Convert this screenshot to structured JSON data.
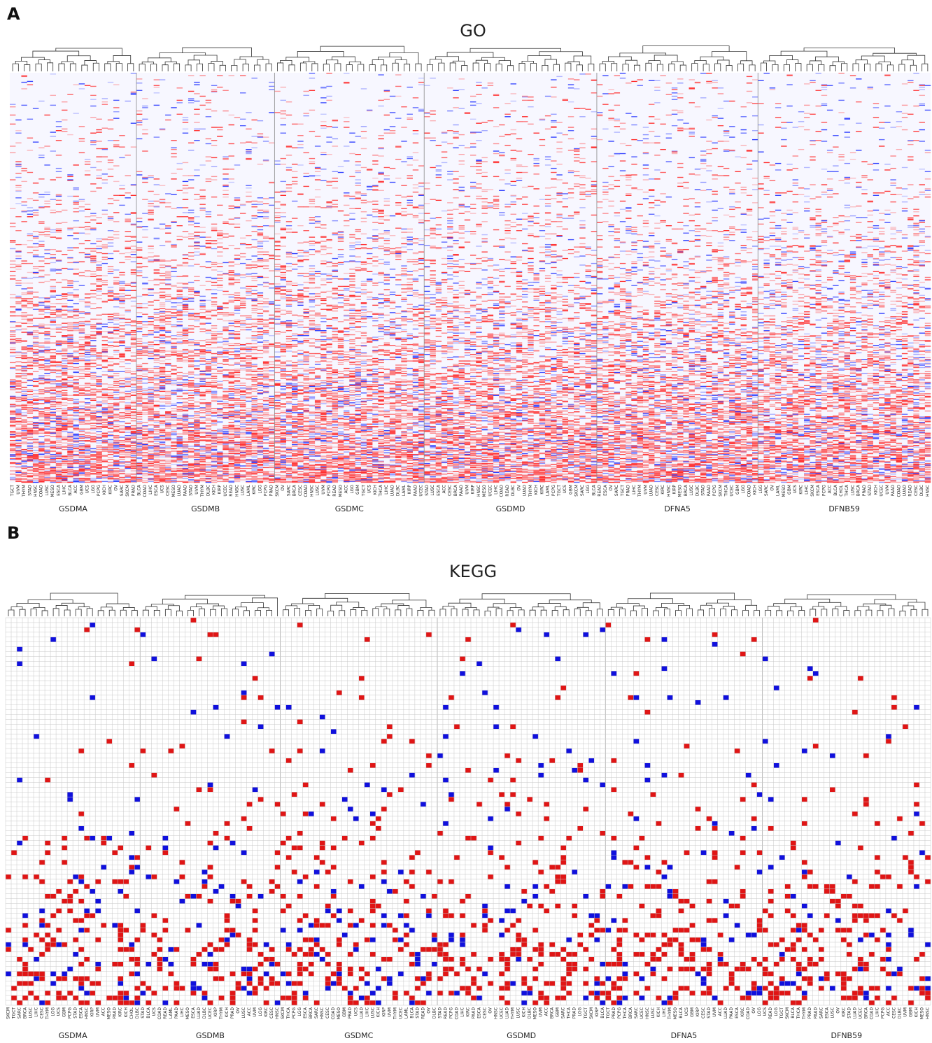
{
  "panels": [
    {
      "letter": "A",
      "title": "GO",
      "chart_data": {
        "type": "heatmap",
        "title": "GO",
        "color_scale": {
          "negative": "#2b3bff",
          "zero": "#f7f7ff",
          "positive": "#ff2a2a"
        },
        "groups": [
          {
            "name": "GSDMA",
            "tick_labels": [
              "TGCT",
              "UVM",
              "THYM",
              "STAD",
              "HNSC",
              "COAD",
              "LUSC",
              "MESO",
              "ESCA",
              "LIHC",
              "BLCA",
              "ACC",
              "GBM",
              "UCS",
              "LGG",
              "PCPG",
              "KICH",
              "KIRC",
              "OV",
              "SARC",
              "SKCM",
              "PRAD"
            ]
          },
          {
            "name": "GSDMB",
            "tick_labels": [
              "BLCA",
              "COAD",
              "LIHC",
              "ESCA",
              "UCS",
              "CESC",
              "MESO",
              "LUAD",
              "PAAD",
              "STAD",
              "UVM",
              "THYM",
              "DLBC",
              "KICH",
              "KIRP",
              "UCEC",
              "READ",
              "HNSC",
              "LUSC",
              "LAML",
              "KIRC",
              "LGG",
              "PCPG",
              "PRAD"
            ]
          },
          {
            "name": "GSDMC",
            "tick_labels": [
              "SKCM",
              "OV",
              "SARC",
              "BRCA",
              "CESC",
              "COAD",
              "HNSC",
              "LUSC",
              "UVM",
              "PCPG",
              "READ",
              "MESO",
              "ACC",
              "LGG",
              "GBM",
              "TGCT",
              "UCS",
              "KICH",
              "THCA",
              "LIHC",
              "LUAD",
              "DLBC",
              "LAML",
              "KIRP",
              "PAAD",
              "UCEC"
            ]
          },
          {
            "name": "GSDMD",
            "tick_labels": [
              "STAD",
              "LUSC",
              "ESCA",
              "ACC",
              "CESC",
              "BRCA",
              "PAAD",
              "UVM",
              "KIRP",
              "HNSC",
              "MESO",
              "UCEC",
              "LIHC",
              "COAD",
              "READ",
              "DLBC",
              "OV",
              "LUAD",
              "THYM",
              "KICH",
              "KIRC",
              "LAML",
              "PCPG",
              "TGCT",
              "UCS",
              "GBM",
              "SKCM",
              "SARC",
              "LGG",
              "BLCA"
            ]
          },
          {
            "name": "DFNA5",
            "tick_labels": [
              "READ",
              "ESCA",
              "OV",
              "SARC",
              "TGCT",
              "PRAD",
              "LIHC",
              "THYM",
              "UVM",
              "LUAD",
              "CESC",
              "KIRC",
              "HNSC",
              "KIRP",
              "MESO",
              "BRCA",
              "LUSC",
              "DLBC",
              "STAD",
              "PAAD",
              "PCPG",
              "SKCM",
              "THCA",
              "UCEC",
              "GBM",
              "LGG",
              "COAD",
              "KICH"
            ]
          },
          {
            "name": "DFNB59",
            "tick_labels": [
              "LGG",
              "SARC",
              "OV",
              "LAML",
              "MESO",
              "GBM",
              "UCS",
              "KIRC",
              "LIHC",
              "SKCM",
              "ESCA",
              "PCPG",
              "ACC",
              "BLCA",
              "CHOL",
              "THCA",
              "LUSC",
              "BRCA",
              "PRAD",
              "STAD",
              "KICH",
              "UCEC",
              "UVM",
              "PAAD",
              "COAD",
              "LUAD",
              "READ",
              "CESC",
              "DLBC",
              "HNSC"
            ]
          }
        ],
        "rows": 500,
        "value_range": [
          -1,
          1
        ]
      }
    },
    {
      "letter": "B",
      "title": "KEGG",
      "chart_data": {
        "type": "heatmap",
        "title": "KEGG",
        "color_scale": {
          "negative": "#1010dd",
          "zero": "#ffffff",
          "positive": "#e01515",
          "grid": "#c8c8c8"
        },
        "groups": [
          {
            "name": "GSDMA",
            "tick_labels": [
              "SKCM",
              "TGCT",
              "SARC",
              "BRCA",
              "LUSC",
              "LIHC",
              "CESC",
              "THYM",
              "LGG",
              "UCS",
              "GBM",
              "PCPG",
              "STAD",
              "ESCA",
              "HNSC",
              "KIRP",
              "UVM",
              "ACC",
              "MESO",
              "PAAD",
              "KIRC",
              "KICH",
              "CHOL",
              "DLBC"
            ]
          },
          {
            "name": "GSDMB",
            "tick_labels": [
              "STAD",
              "BLCA",
              "UCS",
              "COAD",
              "READ",
              "LAML",
              "PAAD",
              "LIHC",
              "MESO",
              "ESCA",
              "LUAD",
              "DLBC",
              "UCEC",
              "KIRP",
              "THYM",
              "KICH",
              "PRAD",
              "OV",
              "LUSC",
              "ACC",
              "UVM",
              "LGG",
              "KIRC",
              "CESC",
              "HNSC"
            ]
          },
          {
            "name": "GSDMC",
            "tick_labels": [
              "SKCM",
              "THCA",
              "PCPG",
              "LGG",
              "ESCA",
              "BRCA",
              "SARC",
              "HNSC",
              "CESC",
              "COAD",
              "MESO",
              "GBM",
              "PRAD",
              "UCS",
              "LUAD",
              "LIHC",
              "LUSC",
              "KICH",
              "KIRP",
              "UVM",
              "THYM",
              "UCEC",
              "LAML",
              "BLCA",
              "STAD",
              "READ",
              "OV",
              "DLBC"
            ]
          },
          {
            "name": "GSDMD",
            "tick_labels": [
              "STAD",
              "READ",
              "PCPG",
              "COAD",
              "LIHC",
              "KIRC",
              "PAAD",
              "ESCA",
              "CESC",
              "OV",
              "HNSC",
              "UCEC",
              "LUAD",
              "THYM",
              "LUSC",
              "KICH",
              "DLBC",
              "MESO",
              "UVM",
              "ACC",
              "BRCA",
              "GBM",
              "SARC",
              "THCA",
              "PRAD",
              "LGG",
              "TGCT",
              "SKCM",
              "KIRP",
              "BLCA"
            ]
          },
          {
            "name": "DFNA5",
            "tick_labels": [
              "TGCT",
              "PRAD",
              "PCPG",
              "THCA",
              "BRCA",
              "SARC",
              "UCEC",
              "HNSC",
              "LUSC",
              "KICH",
              "LIHC",
              "THYM",
              "MESO",
              "BLCA",
              "UCS",
              "GBM",
              "KIRP",
              "CESC",
              "STAD",
              "UVM",
              "ACC",
              "LUAD",
              "PAAD",
              "ESCA",
              "KIRC",
              "COAD",
              "OV",
              "LGG"
            ]
          },
          {
            "name": "DFNB59",
            "tick_labels": [
              "UCS",
              "READ",
              "LGG",
              "TGCT",
              "SKCM",
              "BLCA",
              "THCA",
              "THYM",
              "PRAD",
              "PAAD",
              "SARC",
              "ESCA",
              "LUSC",
              "OV",
              "KIRC",
              "STAD",
              "LUAD",
              "UCEC",
              "BRCA",
              "COAD",
              "LIHC",
              "PCPG",
              "ACC",
              "CESC",
              "DLBC",
              "UVM",
              "GBM",
              "KICH",
              "MESO",
              "HNSC"
            ]
          }
        ],
        "rows": 80,
        "value_range": [
          -1,
          1
        ]
      }
    }
  ]
}
